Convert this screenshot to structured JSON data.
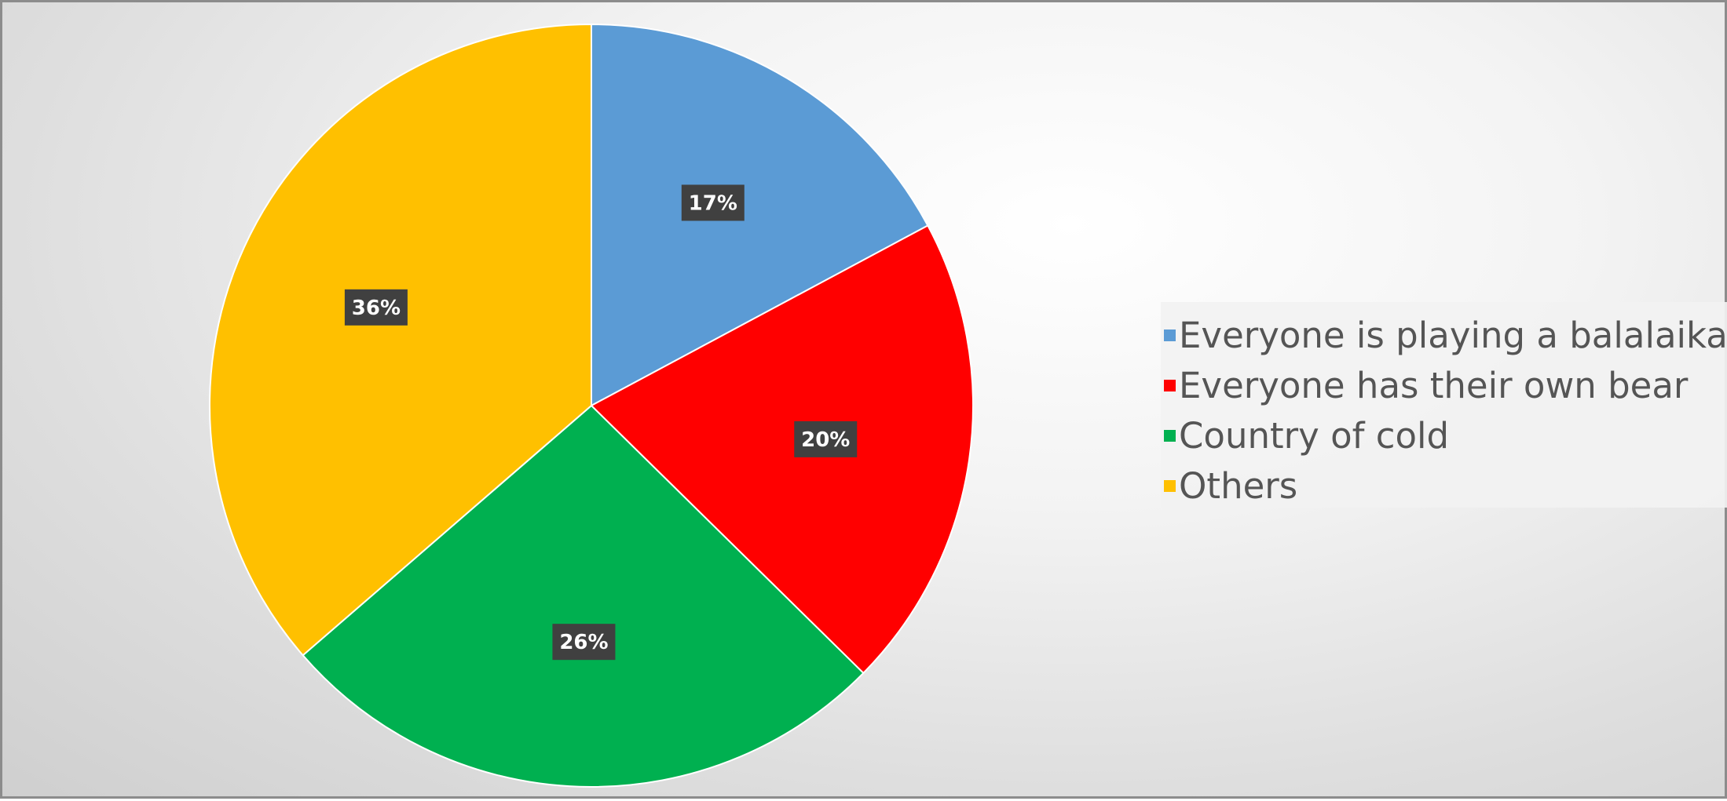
{
  "chart_data": {
    "type": "pie",
    "title": "",
    "slices": [
      {
        "label": "Everyone is playing a balalaika",
        "value": 17,
        "display": "17%",
        "color": "#5b9bd5"
      },
      {
        "label": "Everyone has their own bear",
        "value": 20,
        "display": "20%",
        "color": "#ff0000"
      },
      {
        "label": "Country of cold",
        "value": 26,
        "display": "26%",
        "color": "#00b050"
      },
      {
        "label": "Others",
        "value": 36,
        "display": "36%",
        "color": "#ffc000"
      }
    ],
    "data_label_background": "#404040",
    "legend_position": "right"
  }
}
